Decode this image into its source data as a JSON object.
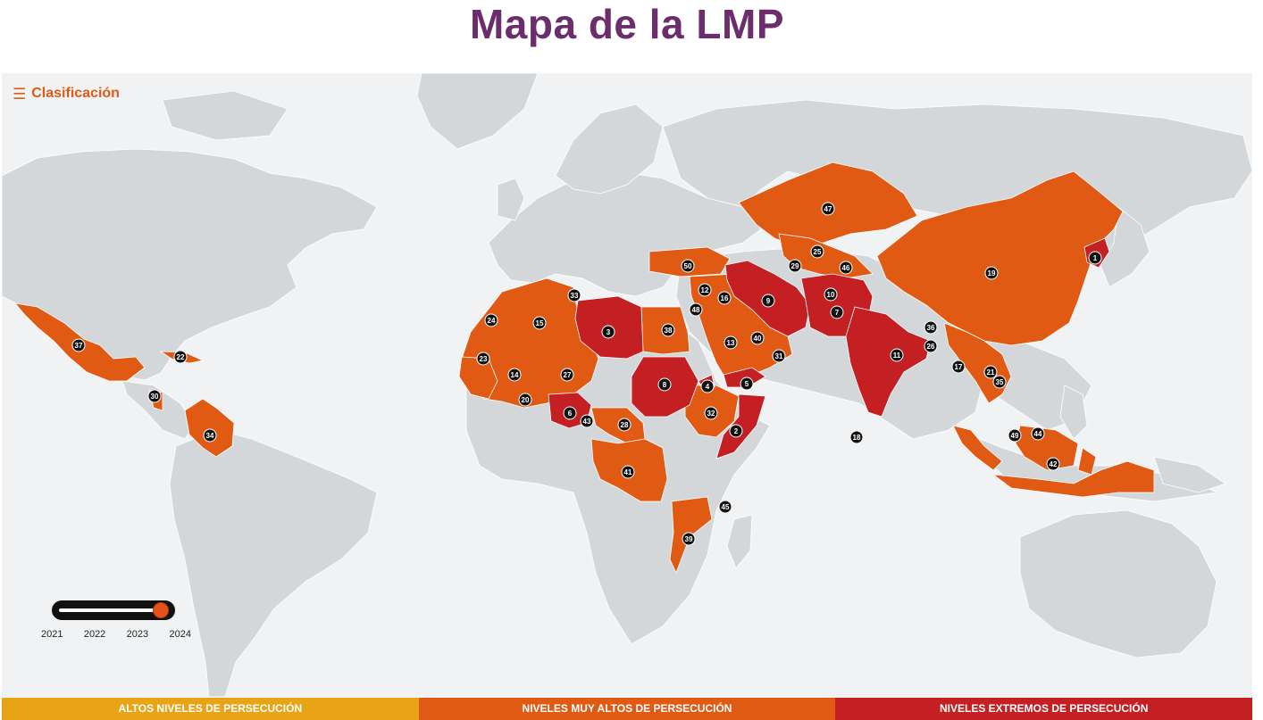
{
  "title": "Mapa de la LMP",
  "menu": {
    "label": "Clasificación",
    "icon": "hamburger-icon"
  },
  "colors": {
    "ocean": "#f0f2f4",
    "land": "#d3d7da",
    "high": "#e8a317",
    "very_high": "#e05a14",
    "extreme": "#c41f22",
    "title": "#6b2d6b",
    "marker": "#111111"
  },
  "year_slider": {
    "years": [
      "2021",
      "2022",
      "2023",
      "2024"
    ],
    "selected": "2024"
  },
  "legend": [
    {
      "label": "ALTOS NIVELES DE PERSECUCIÓN",
      "color": "#e8a317"
    },
    {
      "label": "NIVELES MUY ALTOS DE PERSECUCIÓN",
      "color": "#e05a14"
    },
    {
      "label": "NIVELES EXTREMOS DE PERSECUCIÓN",
      "color": "#c41f22"
    }
  ],
  "rank_markers": [
    "1",
    "2",
    "3",
    "4",
    "5",
    "6",
    "7",
    "8",
    "9",
    "10",
    "11",
    "12",
    "13",
    "14",
    "15",
    "16",
    "17",
    "18",
    "19",
    "20",
    "21",
    "22",
    "23",
    "24",
    "25",
    "26",
    "27",
    "28",
    "29",
    "30",
    "31",
    "32",
    "33",
    "34",
    "35",
    "36",
    "37",
    "38",
    "39",
    "40",
    "41",
    "42",
    "43",
    "44",
    "45",
    "46",
    "47",
    "48",
    "49",
    "50"
  ]
}
